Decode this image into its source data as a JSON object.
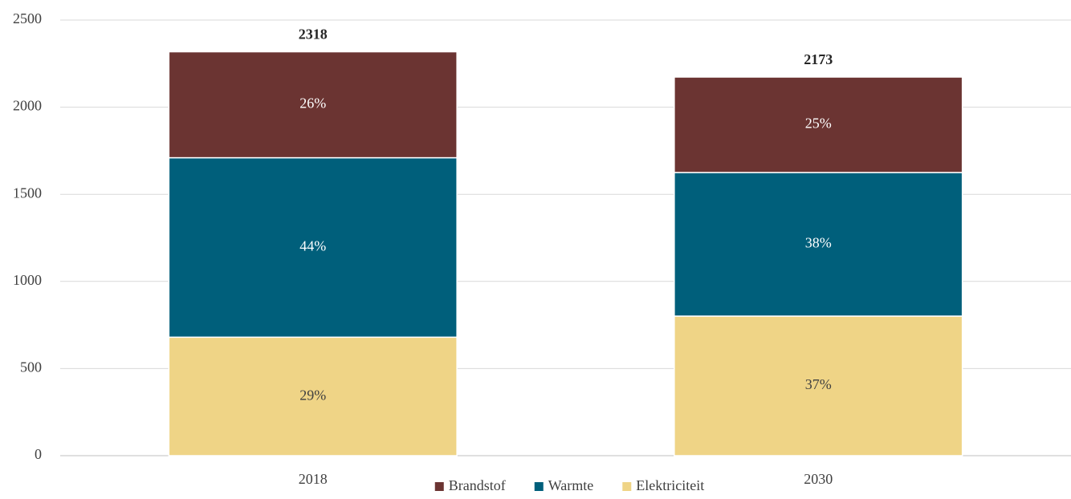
{
  "chart_data": {
    "type": "stacked_bar",
    "categories": [
      "2018",
      "2030"
    ],
    "series": [
      {
        "name": "Elektriciteit",
        "color": "#efd486",
        "values": [
          680,
          801
        ],
        "labels": [
          "29%",
          "37%"
        ]
      },
      {
        "name": "Warmte",
        "color": "#005f7b",
        "values": [
          1030,
          824
        ],
        "labels": [
          "44%",
          "38%"
        ]
      },
      {
        "name": "Brandstof",
        "color": "#6b3432",
        "values": [
          608,
          548
        ],
        "labels": [
          "26%",
          "25%"
        ]
      }
    ],
    "totals": [
      2318,
      2173
    ],
    "ylim": [
      0,
      2500
    ],
    "yticks": [
      0,
      500,
      1000,
      1500,
      2000,
      2500
    ],
    "grid": true,
    "legend": "bottom"
  }
}
